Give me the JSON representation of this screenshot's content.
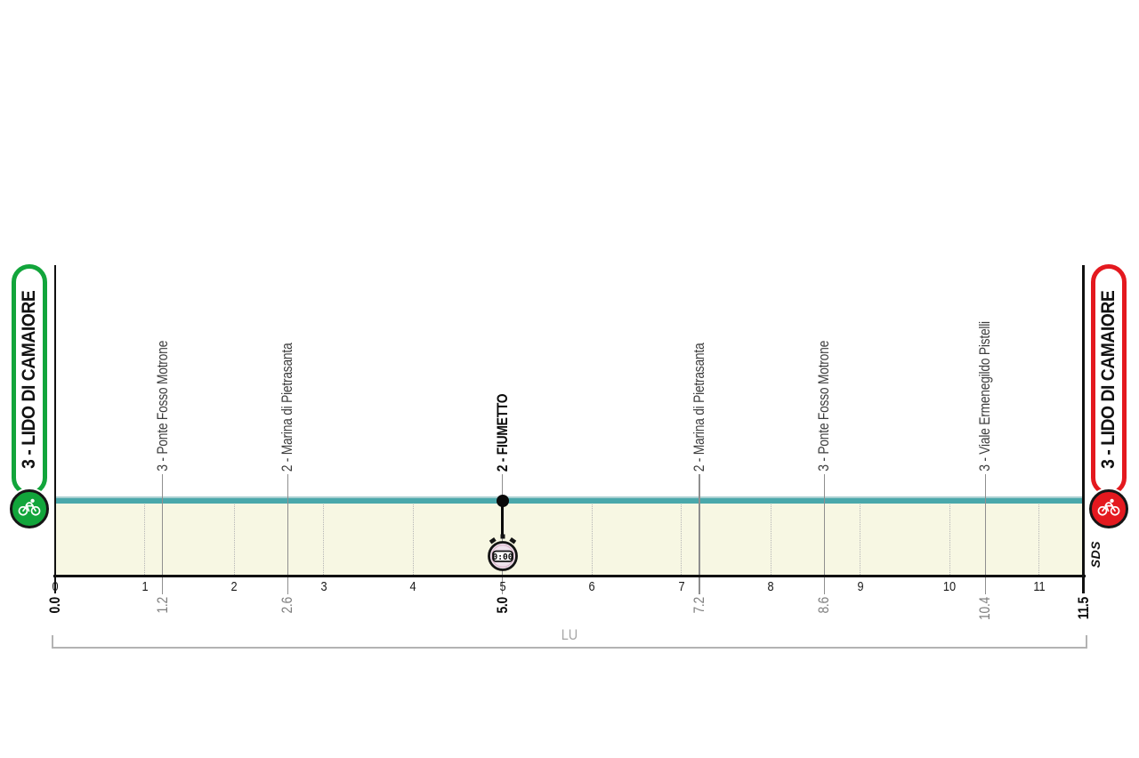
{
  "stage": {
    "start": {
      "label": "3 - LIDO DI CAMAIORE",
      "color": "#12a53b"
    },
    "finish": {
      "label": "3 - LIDO DI CAMAIORE",
      "color": "#e4191f"
    }
  },
  "chart_data": {
    "type": "area",
    "x_unit": "km",
    "x_range": [
      0,
      11.5
    ],
    "x_ticks": [
      0,
      1,
      2,
      3,
      4,
      5,
      6,
      7,
      8,
      9,
      10,
      11
    ],
    "series": [
      {
        "name": "elevation-profile",
        "shape": "flat",
        "x": [
          0.0,
          11.5
        ],
        "y_relative_height": [
          0.18,
          0.18
        ],
        "note": "flat sea-level time-trial profile, no elevation labels shown"
      }
    ],
    "waypoints": [
      {
        "km": "0.0",
        "name": "3 - LIDO DI CAMAIORE",
        "type": "start",
        "emphasis": true
      },
      {
        "km": "1.2",
        "name": "3 - Ponte Fosso Motrone",
        "type": "intermediate",
        "emphasis": false
      },
      {
        "km": "2.6",
        "name": "2 - Marina di Pietrasanta",
        "type": "intermediate",
        "emphasis": false
      },
      {
        "km": "5.0",
        "name": "2 - FIUMETTO",
        "type": "timing",
        "emphasis": true,
        "time": "0:00"
      },
      {
        "km": "7.2",
        "name": "2 - Marina di Pietrasanta",
        "type": "intermediate",
        "emphasis": false
      },
      {
        "km": "8.6",
        "name": "3 - Ponte Fosso Motrone",
        "type": "intermediate",
        "emphasis": false
      },
      {
        "km": "10.4",
        "name": "3 - Viale Ermenegildo Pistelli",
        "type": "intermediate",
        "emphasis": false
      },
      {
        "km": "11.5",
        "name": "3 - LIDO DI CAMAIORE",
        "type": "finish",
        "emphasis": true
      }
    ],
    "province_bracket": {
      "label": "LU"
    },
    "signature": "SDS",
    "legend_position": "none",
    "grid": "dotted vertical at integer km",
    "colors": {
      "line": "#4aa8ab",
      "line_highlight": "#a9d0d1",
      "fill": "#f7f7e3",
      "start": "#12a53b",
      "finish": "#e4191f",
      "marker_line": "#8f8f8f",
      "axis": "#111111"
    }
  }
}
